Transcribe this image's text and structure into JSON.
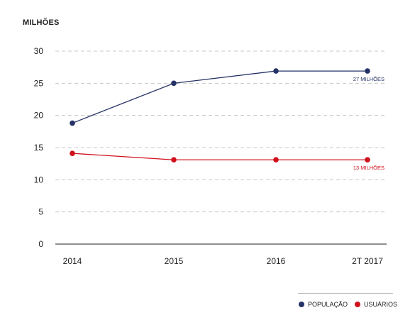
{
  "unit_label": "MILHÕES",
  "chart_data": {
    "type": "line",
    "categories": [
      "2014",
      "2015",
      "2016",
      "2T 2017"
    ],
    "ylim": [
      0,
      30
    ],
    "yticks": [
      0,
      5,
      10,
      15,
      20,
      25,
      30
    ],
    "grid": true,
    "legend_position": "bottom-right",
    "series": [
      {
        "name": "POPULAÇÃO",
        "color": "#253266",
        "values": [
          18.8,
          25.0,
          26.9,
          26.9
        ],
        "end_label": "27 MILHÕES"
      },
      {
        "name": "USUÁRIOS",
        "color": "#d0101b",
        "values": [
          14.1,
          13.1,
          13.1,
          13.1
        ],
        "end_label": "13 MILHÕES"
      }
    ]
  }
}
